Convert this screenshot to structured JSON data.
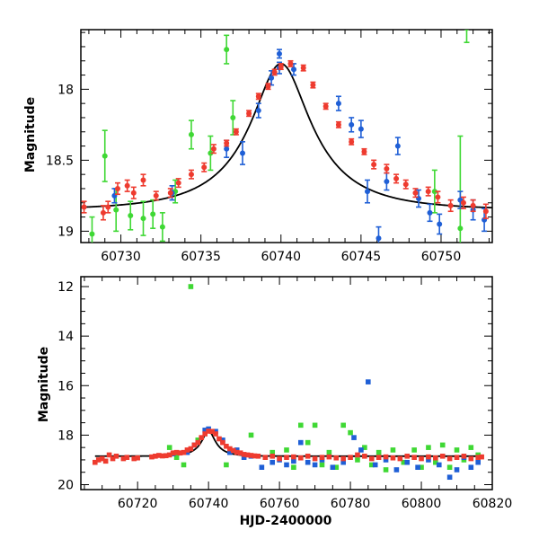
{
  "colors": {
    "blue": "#1f5fd6",
    "red": "#ee3b2f",
    "green": "#3fd834",
    "model": "#000000"
  },
  "chart_data": [
    {
      "type": "scatter",
      "panel": "top",
      "ylabel": "Magnitude",
      "xlabel": "",
      "xlim": [
        60727.5,
        60753.2
      ],
      "ylim": [
        19.08,
        17.58
      ],
      "y_inverted": true,
      "xticks": [
        60730,
        60735,
        60740,
        60745,
        60750
      ],
      "yticks": [
        18,
        18.5,
        19
      ],
      "model_curve": {
        "type": "microlensing",
        "t0": 60740.0,
        "peak_mag": 17.82,
        "baseline_mag": 18.85,
        "u0": 0.35,
        "tE": 5.3
      },
      "series": [
        {
          "color": "red",
          "points": [
            [
              60727.7,
              18.83,
              0.04
            ],
            [
              60728.9,
              18.87,
              0.05
            ],
            [
              60729.2,
              18.83,
              0.04
            ],
            [
              60729.8,
              18.7,
              0.04
            ],
            [
              60730.4,
              18.68,
              0.04
            ],
            [
              60730.8,
              18.73,
              0.04
            ],
            [
              60731.4,
              18.64,
              0.04
            ],
            [
              60732.2,
              18.75,
              0.03
            ],
            [
              60733.1,
              18.73,
              0.03
            ],
            [
              60733.6,
              18.66,
              0.03
            ],
            [
              60734.4,
              18.6,
              0.03
            ],
            [
              60735.2,
              18.55,
              0.03
            ],
            [
              60735.8,
              18.42,
              0.03
            ],
            [
              60736.6,
              18.38,
              0.02
            ],
            [
              60737.2,
              18.3,
              0.02
            ],
            [
              60738.0,
              18.17,
              0.02
            ],
            [
              60738.6,
              18.05,
              0.02
            ],
            [
              60739.2,
              17.98,
              0.02
            ],
            [
              60739.6,
              17.88,
              0.02
            ],
            [
              60740.0,
              17.84,
              0.02
            ],
            [
              60740.6,
              17.82,
              0.02
            ],
            [
              60741.4,
              17.85,
              0.02
            ],
            [
              60742.0,
              17.97,
              0.02
            ],
            [
              60742.8,
              18.12,
              0.02
            ],
            [
              60743.6,
              18.25,
              0.02
            ],
            [
              60744.4,
              18.37,
              0.02
            ],
            [
              60745.2,
              18.44,
              0.02
            ],
            [
              60745.8,
              18.53,
              0.03
            ],
            [
              60746.6,
              18.56,
              0.03
            ],
            [
              60747.2,
              18.63,
              0.03
            ],
            [
              60747.8,
              18.67,
              0.03
            ],
            [
              60748.4,
              18.73,
              0.03
            ],
            [
              60749.2,
              18.72,
              0.03
            ],
            [
              60749.8,
              18.76,
              0.04
            ],
            [
              60750.6,
              18.82,
              0.04
            ],
            [
              60751.4,
              18.8,
              0.04
            ],
            [
              60752.0,
              18.82,
              0.04
            ],
            [
              60752.8,
              18.86,
              0.05
            ]
          ]
        },
        {
          "color": "blue",
          "points": [
            [
              60729.6,
              18.75,
              0.05
            ],
            [
              60733.2,
              18.73,
              0.05
            ],
            [
              60736.6,
              18.42,
              0.06
            ],
            [
              60737.6,
              18.45,
              0.08
            ],
            [
              60738.6,
              18.15,
              0.05
            ],
            [
              60739.4,
              17.92,
              0.05
            ],
            [
              60739.9,
              17.85,
              0.04
            ],
            [
              60740.8,
              17.86,
              0.04
            ],
            [
              60743.6,
              18.1,
              0.05
            ],
            [
              60744.4,
              18.25,
              0.05
            ],
            [
              60745.0,
              18.28,
              0.06
            ],
            [
              60745.4,
              18.72,
              0.08
            ],
            [
              60746.1,
              19.05,
              0.08
            ],
            [
              60746.6,
              18.65,
              0.06
            ],
            [
              60747.3,
              18.4,
              0.06
            ],
            [
              60748.6,
              18.77,
              0.06
            ],
            [
              60749.3,
              18.87,
              0.06
            ],
            [
              60749.9,
              18.95,
              0.07
            ],
            [
              60751.2,
              18.78,
              0.06
            ],
            [
              60752.0,
              18.85,
              0.07
            ],
            [
              60752.7,
              18.92,
              0.08
            ],
            [
              60739.9,
              17.75,
              0.03
            ]
          ]
        },
        {
          "color": "green",
          "points": [
            [
              60728.2,
              19.02,
              0.12
            ],
            [
              60729.0,
              18.47,
              0.18
            ],
            [
              60729.7,
              18.85,
              0.15
            ],
            [
              60730.6,
              18.89,
              0.1
            ],
            [
              60731.4,
              18.91,
              0.12
            ],
            [
              60732.0,
              18.88,
              0.1
            ],
            [
              60732.6,
              18.97,
              0.1
            ],
            [
              60733.4,
              18.72,
              0.08
            ],
            [
              60734.4,
              18.32,
              0.1
            ],
            [
              60735.6,
              18.45,
              0.12
            ],
            [
              60736.6,
              17.72,
              0.1
            ],
            [
              60737.0,
              18.2,
              0.12
            ],
            [
              60749.6,
              18.72,
              0.15
            ],
            [
              60751.2,
              18.98,
              0.65
            ],
            [
              60751.6,
              17.57,
              0.1
            ]
          ]
        }
      ]
    },
    {
      "type": "scatter",
      "panel": "bottom",
      "ylabel": "Magnitude",
      "xlabel": "HJD-2400000",
      "xlim": [
        60704,
        60820
      ],
      "ylim": [
        20.2,
        11.6
      ],
      "y_inverted": true,
      "xticks": [
        60720,
        60740,
        60760,
        60780,
        60800,
        60820
      ],
      "yticks": [
        12,
        14,
        16,
        18,
        20
      ],
      "model_curve": {
        "type": "microlensing",
        "t0": 60740.0,
        "peak_mag": 17.82,
        "baseline_mag": 18.85,
        "u0": 0.35,
        "tE": 5.3
      },
      "series": [
        {
          "color": "red",
          "points": [
            [
              60708,
              19.1
            ],
            [
              60709,
              19.0
            ],
            [
              60710,
              18.95
            ],
            [
              60711,
              19.05
            ],
            [
              60712,
              18.8
            ],
            [
              60713,
              18.95
            ],
            [
              60714,
              18.85
            ],
            [
              60716,
              18.95
            ],
            [
              60717,
              18.9
            ],
            [
              60719,
              18.95
            ],
            [
              60720,
              18.92
            ],
            [
              60724,
              18.88
            ],
            [
              60725,
              18.85
            ],
            [
              60726,
              18.82
            ],
            [
              60727,
              18.84
            ],
            [
              60728,
              18.83
            ],
            [
              60729,
              18.8
            ],
            [
              60730,
              18.72
            ],
            [
              60731,
              18.7
            ],
            [
              60732,
              18.72
            ],
            [
              60733,
              18.7
            ],
            [
              60734,
              18.6
            ],
            [
              60735,
              18.55
            ],
            [
              60736,
              18.4
            ],
            [
              60737,
              18.3
            ],
            [
              60738,
              18.1
            ],
            [
              60739,
              17.95
            ],
            [
              60740,
              17.84
            ],
            [
              60741,
              17.85
            ],
            [
              60742,
              17.95
            ],
            [
              60743,
              18.15
            ],
            [
              60744,
              18.3
            ],
            [
              60745,
              18.45
            ],
            [
              60746,
              18.55
            ],
            [
              60747,
              18.62
            ],
            [
              60748,
              18.7
            ],
            [
              60749,
              18.72
            ],
            [
              60750,
              18.78
            ],
            [
              60751,
              18.8
            ],
            [
              60752,
              18.82
            ],
            [
              60753,
              18.84
            ],
            [
              60754,
              18.85
            ],
            [
              60756,
              18.9
            ],
            [
              60758,
              18.85
            ],
            [
              60760,
              18.95
            ],
            [
              60762,
              18.9
            ],
            [
              60764,
              18.88
            ],
            [
              60766,
              18.92
            ],
            [
              60768,
              18.85
            ],
            [
              60770,
              18.95
            ],
            [
              60772,
              18.9
            ],
            [
              60774,
              18.88
            ],
            [
              60776,
              18.92
            ],
            [
              60778,
              18.95
            ],
            [
              60780,
              18.9
            ],
            [
              60782,
              18.8
            ],
            [
              60784,
              18.85
            ],
            [
              60786,
              18.95
            ],
            [
              60788,
              18.9
            ],
            [
              60790,
              18.88
            ],
            [
              60792,
              18.92
            ],
            [
              60794,
              18.95
            ],
            [
              60796,
              18.85
            ],
            [
              60798,
              18.9
            ],
            [
              60800,
              18.95
            ],
            [
              60802,
              18.88
            ],
            [
              60804,
              18.92
            ],
            [
              60806,
              18.85
            ],
            [
              60808,
              18.95
            ],
            [
              60810,
              18.9
            ],
            [
              60812,
              18.85
            ],
            [
              60814,
              18.95
            ],
            [
              60816,
              18.9
            ],
            [
              60817,
              18.88
            ]
          ]
        },
        {
          "color": "blue",
          "points": [
            [
              60730,
              18.75
            ],
            [
              60734,
              18.7
            ],
            [
              60736,
              18.4
            ],
            [
              60739,
              17.8
            ],
            [
              60740,
              17.75
            ],
            [
              60742,
              17.85
            ],
            [
              60744,
              18.2
            ],
            [
              60746,
              18.7
            ],
            [
              60748,
              18.6
            ],
            [
              60750,
              18.9
            ],
            [
              60752,
              18.85
            ],
            [
              60755,
              19.3
            ],
            [
              60758,
              19.1
            ],
            [
              60760,
              19.0
            ],
            [
              60762,
              19.2
            ],
            [
              60764,
              19.05
            ],
            [
              60766,
              18.3
            ],
            [
              60768,
              19.1
            ],
            [
              60770,
              19.2
            ],
            [
              60772,
              19.0
            ],
            [
              60775,
              19.3
            ],
            [
              60778,
              19.1
            ],
            [
              60781,
              18.1
            ],
            [
              60783,
              18.6
            ],
            [
              60785,
              15.85
            ],
            [
              60787,
              19.2
            ],
            [
              60790,
              19.0
            ],
            [
              60793,
              19.4
            ],
            [
              60796,
              19.1
            ],
            [
              60799,
              19.3
            ],
            [
              60802,
              19.0
            ],
            [
              60805,
              19.2
            ],
            [
              60808,
              19.7
            ],
            [
              60810,
              19.4
            ],
            [
              60812,
              18.9
            ],
            [
              60814,
              19.3
            ],
            [
              60816,
              19.1
            ]
          ]
        },
        {
          "color": "green",
          "points": [
            [
              60735,
              12.0
            ],
            [
              60729,
              18.5
            ],
            [
              60731,
              18.9
            ],
            [
              60733,
              19.2
            ],
            [
              60737,
              18.2
            ],
            [
              60745,
              19.2
            ],
            [
              60752,
              18.0
            ],
            [
              60758,
              18.7
            ],
            [
              60762,
              18.6
            ],
            [
              60764,
              19.3
            ],
            [
              60766,
              17.6
            ],
            [
              60768,
              18.3
            ],
            [
              60770,
              17.6
            ],
            [
              60772,
              19.2
            ],
            [
              60774,
              18.7
            ],
            [
              60776,
              19.3
            ],
            [
              60778,
              17.6
            ],
            [
              60780,
              17.9
            ],
            [
              60782,
              19.0
            ],
            [
              60784,
              18.5
            ],
            [
              60786,
              19.2
            ],
            [
              60788,
              18.7
            ],
            [
              60790,
              19.4
            ],
            [
              60792,
              18.6
            ],
            [
              60795,
              19.1
            ],
            [
              60798,
              18.6
            ],
            [
              60800,
              19.3
            ],
            [
              60802,
              18.5
            ],
            [
              60804,
              19.1
            ],
            [
              60806,
              18.4
            ],
            [
              60808,
              19.3
            ],
            [
              60810,
              18.6
            ],
            [
              60812,
              19.0
            ],
            [
              60814,
              18.5
            ],
            [
              60816,
              18.8
            ]
          ]
        }
      ]
    }
  ]
}
